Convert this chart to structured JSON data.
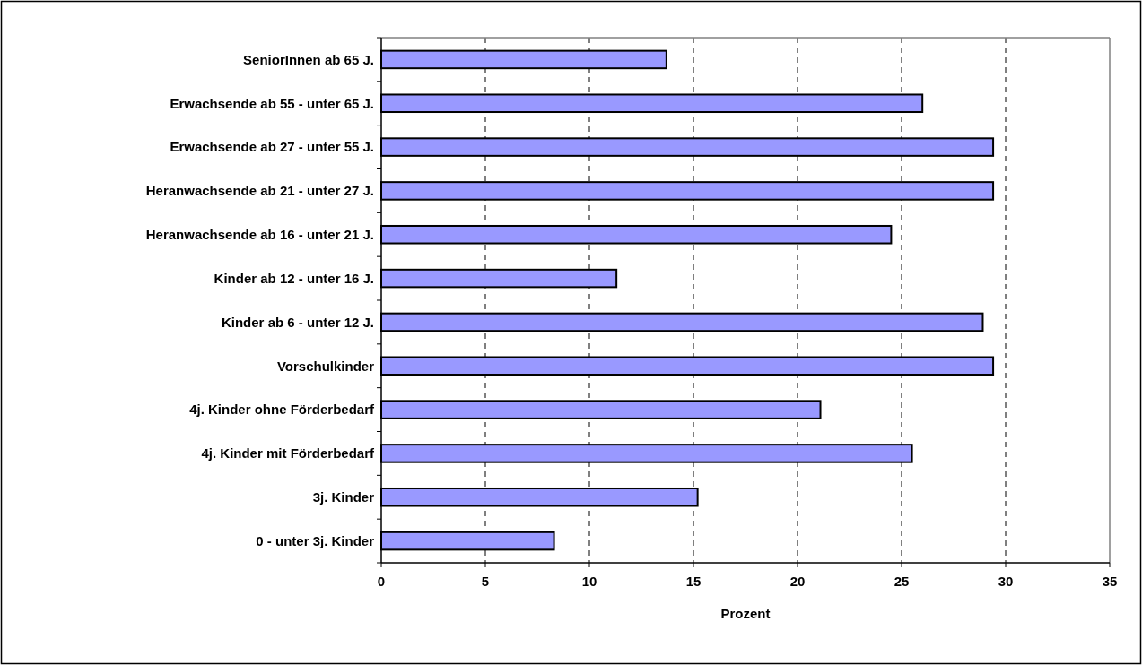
{
  "chart_data": {
    "type": "bar",
    "orientation": "horizontal",
    "xlabel": "Prozent",
    "categories": [
      "SeniorInnen ab 65 J.",
      "Erwachsende ab 55 - unter 65 J.",
      "Erwachsende ab 27 - unter 55 J.",
      "Heranwachsende ab 21 - unter 27 J.",
      "Heranwachsende ab 16 - unter 21 J.",
      "Kinder ab 12 - unter 16 J.",
      "Kinder ab 6 - unter 12 J.",
      "Vorschulkinder",
      "4j. Kinder ohne Förderbedarf",
      "4j. Kinder mit Förderbedarf",
      "3j. Kinder",
      "0 - unter 3j. Kinder"
    ],
    "values": [
      13.7,
      26.0,
      29.4,
      29.4,
      24.5,
      11.3,
      28.9,
      29.4,
      21.1,
      25.5,
      15.2,
      8.3
    ],
    "color": "#9999ff",
    "xlim": [
      0,
      35
    ],
    "xticks": [
      0,
      5,
      10,
      15,
      20,
      25,
      30,
      35
    ],
    "grid": "x"
  }
}
